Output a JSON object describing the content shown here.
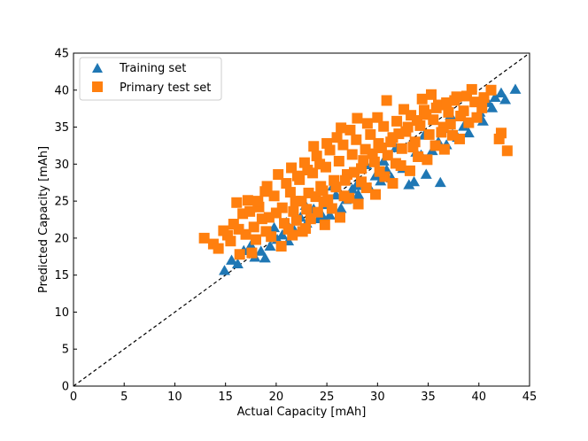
{
  "chart_data": {
    "type": "scatter",
    "title": "",
    "xlabel": "Actual Capacity [mAh]",
    "ylabel": "Predicted Capacity [mAh]",
    "xlim": [
      0,
      45
    ],
    "ylim": [
      0,
      45
    ],
    "xticks": [
      0,
      5,
      10,
      15,
      20,
      25,
      30,
      35,
      40,
      45
    ],
    "yticks": [
      0,
      5,
      10,
      15,
      20,
      25,
      30,
      35,
      40,
      45
    ],
    "ticks_direction": "in",
    "grid": false,
    "legend_position": "top-left",
    "reference_line": {
      "type": "y=x",
      "style": "dashed",
      "color": "#000000"
    },
    "series": [
      {
        "name": "Training set",
        "marker": "triangle",
        "color": "#1f77b4",
        "points": [
          [
            14.9,
            15.6
          ],
          [
            15.6,
            17.0
          ],
          [
            16.2,
            16.5
          ],
          [
            16.8,
            18.3
          ],
          [
            17.5,
            19.0
          ],
          [
            17.9,
            17.4
          ],
          [
            18.5,
            18.2
          ],
          [
            18.9,
            17.3
          ],
          [
            19.4,
            18.9
          ],
          [
            20.1,
            19.8
          ],
          [
            20.6,
            20.4
          ],
          [
            21.0,
            22.1
          ],
          [
            21.8,
            21.0
          ],
          [
            22.4,
            22.8
          ],
          [
            23.0,
            22.0
          ],
          [
            23.7,
            23.9
          ],
          [
            24.2,
            22.6
          ],
          [
            24.8,
            24.5
          ],
          [
            25.3,
            23.1
          ],
          [
            25.9,
            25.8
          ],
          [
            26.4,
            24.0
          ],
          [
            26.9,
            25.2
          ],
          [
            27.5,
            26.6
          ],
          [
            28.1,
            25.9
          ],
          [
            28.6,
            27.4
          ],
          [
            29.2,
            26.8
          ],
          [
            29.8,
            28.4
          ],
          [
            30.3,
            27.7
          ],
          [
            30.9,
            29.2
          ],
          [
            31.4,
            28.1
          ],
          [
            32.0,
            30.0
          ],
          [
            32.5,
            29.4
          ],
          [
            33.1,
            27.2
          ],
          [
            33.6,
            27.6
          ],
          [
            34.3,
            31.2
          ],
          [
            34.8,
            28.6
          ],
          [
            35.4,
            31.8
          ],
          [
            36.0,
            33.0
          ],
          [
            36.2,
            27.5
          ],
          [
            36.8,
            32.6
          ],
          [
            37.4,
            34.0
          ],
          [
            37.9,
            33.6
          ],
          [
            38.5,
            35.1
          ],
          [
            39.0,
            34.2
          ],
          [
            39.6,
            36.2
          ],
          [
            40.1,
            37.0
          ],
          [
            40.4,
            35.8
          ],
          [
            40.9,
            38.3
          ],
          [
            41.3,
            37.6
          ],
          [
            41.6,
            39.0
          ],
          [
            42.2,
            39.6
          ],
          [
            42.6,
            38.7
          ],
          [
            43.6,
            40.1
          ],
          [
            19.8,
            21.4
          ],
          [
            22.9,
            24.4
          ],
          [
            25.6,
            27.0
          ],
          [
            28.9,
            29.9
          ],
          [
            31.8,
            32.2
          ],
          [
            34.6,
            33.9
          ],
          [
            37.2,
            36.6
          ],
          [
            21.2,
            19.6
          ],
          [
            24.6,
            22.9
          ],
          [
            27.9,
            27.1
          ],
          [
            30.6,
            30.4
          ],
          [
            33.8,
            31.6
          ],
          [
            36.5,
            34.8
          ]
        ]
      },
      {
        "name": "Primary test set",
        "marker": "square",
        "color": "#ff7f0e",
        "points": [
          [
            12.9,
            20.0
          ],
          [
            13.8,
            19.2
          ],
          [
            14.3,
            18.6
          ],
          [
            15.2,
            20.4
          ],
          [
            15.8,
            21.9
          ],
          [
            16.1,
            24.8
          ],
          [
            16.7,
            23.3
          ],
          [
            17.2,
            25.1
          ],
          [
            17.8,
            21.5
          ],
          [
            18.3,
            24.2
          ],
          [
            18.9,
            26.3
          ],
          [
            19.3,
            22.8
          ],
          [
            19.8,
            25.7
          ],
          [
            20.2,
            28.6
          ],
          [
            20.6,
            24.1
          ],
          [
            21.0,
            27.4
          ],
          [
            21.5,
            29.5
          ],
          [
            21.9,
            25.0
          ],
          [
            22.3,
            27.9
          ],
          [
            22.8,
            30.2
          ],
          [
            23.2,
            26.1
          ],
          [
            23.6,
            28.8
          ],
          [
            24.0,
            31.1
          ],
          [
            24.4,
            27.0
          ],
          [
            24.9,
            29.6
          ],
          [
            25.3,
            31.9
          ],
          [
            25.7,
            27.8
          ],
          [
            26.2,
            30.4
          ],
          [
            26.6,
            32.6
          ],
          [
            27.0,
            28.6
          ],
          [
            27.5,
            31.3
          ],
          [
            27.9,
            33.3
          ],
          [
            28.4,
            29.4
          ],
          [
            28.8,
            32.0
          ],
          [
            29.3,
            34.0
          ],
          [
            29.7,
            30.3
          ],
          [
            30.1,
            32.8
          ],
          [
            30.6,
            35.1
          ],
          [
            31.0,
            31.2
          ],
          [
            31.5,
            33.6
          ],
          [
            31.9,
            35.8
          ],
          [
            32.4,
            32.1
          ],
          [
            32.8,
            34.4
          ],
          [
            33.3,
            36.6
          ],
          [
            33.7,
            33.0
          ],
          [
            34.2,
            35.2
          ],
          [
            34.6,
            37.3
          ],
          [
            35.1,
            34.0
          ],
          [
            35.5,
            36.0
          ],
          [
            36.0,
            38.0
          ],
          [
            36.5,
            35.0
          ],
          [
            37.0,
            37.0
          ],
          [
            37.6,
            38.6
          ],
          [
            38.2,
            36.5
          ],
          [
            38.8,
            39.2
          ],
          [
            39.3,
            40.1
          ],
          [
            42.2,
            34.2
          ],
          [
            42.0,
            33.4
          ],
          [
            42.8,
            31.8
          ],
          [
            23.7,
            32.4
          ],
          [
            26.4,
            34.9
          ],
          [
            28.0,
            36.2
          ],
          [
            30.9,
            38.6
          ],
          [
            17.0,
            20.5
          ],
          [
            18.0,
            19.8
          ],
          [
            19.5,
            20.2
          ],
          [
            20.5,
            18.9
          ],
          [
            21.2,
            21.2
          ],
          [
            22.0,
            22.4
          ],
          [
            22.6,
            20.9
          ],
          [
            23.4,
            22.6
          ],
          [
            24.1,
            23.5
          ],
          [
            24.8,
            21.8
          ],
          [
            25.5,
            24.0
          ],
          [
            26.3,
            22.8
          ],
          [
            27.2,
            25.4
          ],
          [
            28.1,
            24.6
          ],
          [
            28.9,
            26.8
          ],
          [
            29.8,
            25.9
          ],
          [
            30.7,
            28.3
          ],
          [
            31.5,
            27.4
          ],
          [
            32.3,
            29.8
          ],
          [
            33.2,
            29.1
          ],
          [
            34.0,
            31.0
          ],
          [
            34.9,
            30.6
          ],
          [
            35.7,
            32.5
          ],
          [
            36.6,
            32.0
          ],
          [
            37.4,
            33.9
          ],
          [
            38.1,
            33.4
          ],
          [
            39.0,
            35.6
          ],
          [
            39.8,
            36.3
          ],
          [
            40.3,
            37.6
          ],
          [
            16.4,
            17.8
          ],
          [
            17.6,
            18.0
          ],
          [
            18.6,
            22.6
          ],
          [
            19.0,
            20.9
          ],
          [
            20.8,
            22.0
          ],
          [
            21.7,
            23.6
          ],
          [
            22.5,
            25.0
          ],
          [
            23.0,
            23.9
          ],
          [
            23.9,
            25.6
          ],
          [
            24.6,
            26.4
          ],
          [
            25.1,
            25.2
          ],
          [
            25.9,
            26.9
          ],
          [
            26.8,
            27.8
          ],
          [
            27.7,
            28.9
          ],
          [
            28.6,
            30.5
          ],
          [
            29.5,
            31.4
          ],
          [
            30.4,
            32.2
          ],
          [
            31.3,
            33.0
          ],
          [
            32.1,
            34.1
          ],
          [
            33.0,
            35.0
          ],
          [
            33.9,
            35.9
          ],
          [
            34.8,
            36.7
          ],
          [
            35.8,
            37.6
          ],
          [
            36.8,
            38.3
          ],
          [
            37.8,
            39.1
          ],
          [
            21.4,
            26.2
          ],
          [
            22.1,
            28.4
          ],
          [
            23.1,
            29.2
          ],
          [
            24.3,
            30.0
          ],
          [
            25.0,
            32.8
          ],
          [
            26.0,
            33.6
          ],
          [
            27.3,
            34.6
          ],
          [
            29.0,
            35.5
          ],
          [
            30.0,
            36.3
          ],
          [
            32.6,
            37.4
          ],
          [
            34.4,
            38.8
          ],
          [
            35.3,
            39.4
          ],
          [
            20.0,
            23.4
          ],
          [
            19.1,
            27.0
          ],
          [
            18.2,
            25.0
          ],
          [
            17.4,
            23.6
          ],
          [
            16.3,
            21.2
          ],
          [
            15.5,
            19.6
          ],
          [
            14.8,
            21.0
          ],
          [
            36.3,
            34.3
          ],
          [
            37.2,
            35.4
          ],
          [
            38.5,
            37.2
          ],
          [
            39.6,
            38.4
          ],
          [
            40.5,
            39.0
          ],
          [
            41.2,
            40.0
          ],
          [
            33.5,
            32.3
          ],
          [
            31.8,
            30.1
          ],
          [
            30.2,
            29.0
          ],
          [
            28.4,
            27.6
          ],
          [
            26.7,
            25.7
          ],
          [
            24.7,
            24.9
          ],
          [
            22.9,
            21.3
          ],
          [
            21.6,
            20.4
          ]
        ]
      }
    ]
  }
}
